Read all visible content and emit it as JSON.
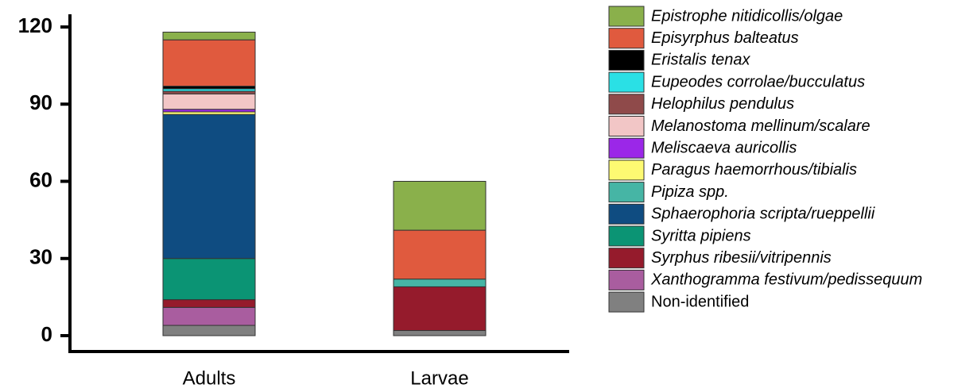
{
  "chart_data": {
    "type": "stacked_bar",
    "categories": [
      "Adults",
      "Larvae"
    ],
    "ylim": [
      0,
      120
    ],
    "yticks": [
      0,
      30,
      60,
      90,
      120
    ],
    "series": [
      {
        "name": "Epistrophe nitidicollis/olgae",
        "color": "#8ab04b",
        "italic": true,
        "values": [
          3,
          19
        ]
      },
      {
        "name": "Episyrphus balteatus",
        "color": "#e05a3e",
        "italic": true,
        "values": [
          18,
          19
        ]
      },
      {
        "name": "Eristalis tenax",
        "color": "#000000",
        "italic": true,
        "values": [
          1,
          0
        ]
      },
      {
        "name": "Eupeodes corrolae/bucculatus",
        "color": "#2ae0e5",
        "italic": true,
        "values": [
          1,
          0
        ]
      },
      {
        "name": "Helophilus pendulus",
        "color": "#8f4a4a",
        "italic": true,
        "values": [
          1,
          0
        ]
      },
      {
        "name": "Melanostoma mellinum/scalare",
        "color": "#f2c6c6",
        "italic": true,
        "values": [
          6,
          0
        ]
      },
      {
        "name": "Meliscaeva auricollis",
        "color": "#9b27e8",
        "italic": true,
        "values": [
          1,
          0
        ]
      },
      {
        "name": "Paragus haemorrhous/tibialis",
        "color": "#fdfa72",
        "italic": true,
        "values": [
          1,
          0
        ]
      },
      {
        "name": "Pipiza spp.",
        "color": "#46b5a5",
        "italic": true,
        "values": [
          0,
          3
        ]
      },
      {
        "name": "Sphaerophoria scripta/rueppellii",
        "color": "#0f4c81",
        "italic": true,
        "values": [
          56,
          0
        ]
      },
      {
        "name": "Syritta pipiens",
        "color": "#0b9474",
        "italic": true,
        "values": [
          16,
          0
        ]
      },
      {
        "name": "Syrphus ribesii/vitripennis",
        "color": "#951b2c",
        "italic": true,
        "values": [
          3,
          17
        ]
      },
      {
        "name": "Xanthogramma festivum/pedissequum",
        "color": "#a95d9f",
        "italic": true,
        "values": [
          7,
          0
        ]
      },
      {
        "name": "Non-identified",
        "color": "#808080",
        "italic": false,
        "values": [
          4,
          2
        ]
      }
    ]
  }
}
